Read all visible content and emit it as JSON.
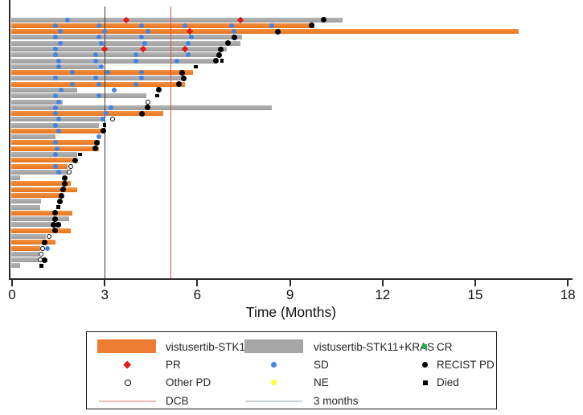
{
  "figure": {
    "background": "#ffffff"
  },
  "chart_data": {
    "type": "swimmer",
    "title": "",
    "xlabel": "Time (Months)",
    "xlim": [
      0,
      18
    ],
    "x_ticks": [
      0,
      3,
      6,
      9,
      12,
      15,
      18
    ],
    "unit": "months",
    "grid": false,
    "groups": {
      "STK11": {
        "label": "vistusertib-STK11",
        "color": "#ED7D31"
      },
      "STK11_KRAS": {
        "label": "vistusertib-STK11+KRAS",
        "color": "#A6A6A6"
      }
    },
    "marker_defs": {
      "CR": {
        "label": "CR",
        "shape": "square",
        "color": "#22B14C",
        "size": 6
      },
      "PR": {
        "label": "PR",
        "shape": "diamond",
        "color": "#E31A1C",
        "size": 6
      },
      "SD": {
        "label": "SD",
        "shape": "circle",
        "color": "#4583E3",
        "size": 6
      },
      "PD": {
        "label": "RECIST PD",
        "shape": "circle",
        "color": "#000000",
        "size": 7
      },
      "OPD": {
        "label": "Other PD",
        "shape": "open-circle",
        "color": "#000000",
        "size": 6
      },
      "NE": {
        "label": "NE",
        "shape": "circle",
        "color": "#FFFF33",
        "size": 6
      },
      "DIED": {
        "label": "Died",
        "shape": "square",
        "color": "#000000",
        "size": 4.5
      }
    },
    "ref_lines": [
      {
        "id": "dcb",
        "label": "DCB",
        "x": 5.13,
        "color": "#E14A4A",
        "legend_color": "#F0B9B6"
      },
      {
        "id": "3mo",
        "label": "3 months",
        "x": 3.0,
        "color": "#3a3a3a",
        "legend_color": "#C7D0D6"
      }
    ],
    "rows": [
      {
        "group": "STK11_KRAS",
        "end": 10.7,
        "markers": [
          {
            "type": "SD",
            "t": 1.8
          },
          {
            "type": "PR",
            "t": 3.7
          },
          {
            "type": "PR",
            "t": 7.4
          },
          {
            "type": "PD",
            "t": 10.1
          }
        ]
      },
      {
        "group": "STK11",
        "end": 9.8,
        "markers": [
          {
            "type": "SD",
            "t": 1.4
          },
          {
            "type": "SD",
            "t": 2.8
          },
          {
            "type": "SD",
            "t": 4.2
          },
          {
            "type": "SD",
            "t": 5.6
          },
          {
            "type": "SD",
            "t": 7.1
          },
          {
            "type": "SD",
            "t": 8.4
          },
          {
            "type": "PD",
            "t": 9.7
          }
        ]
      },
      {
        "group": "STK11",
        "end": 16.4,
        "markers": [
          {
            "type": "SD",
            "t": 1.55
          },
          {
            "type": "SD",
            "t": 3.0
          },
          {
            "type": "SD",
            "t": 4.4
          },
          {
            "type": "PR",
            "t": 5.75
          },
          {
            "type": "SD",
            "t": 7.2
          },
          {
            "type": "PD",
            "t": 8.6
          }
        ]
      },
      {
        "group": "STK11_KRAS",
        "end": 7.45,
        "markers": [
          {
            "type": "SD",
            "t": 1.4
          },
          {
            "type": "SD",
            "t": 2.8
          },
          {
            "type": "SD",
            "t": 4.2
          },
          {
            "type": "SD",
            "t": 5.8
          },
          {
            "type": "PD",
            "t": 7.2
          }
        ]
      },
      {
        "group": "STK11_KRAS",
        "end": 7.4,
        "markers": [
          {
            "type": "SD",
            "t": 1.55
          },
          {
            "type": "SD",
            "t": 2.9
          },
          {
            "type": "SD",
            "t": 4.3
          },
          {
            "type": "SD",
            "t": 5.7
          },
          {
            "type": "PD",
            "t": 7.0
          }
        ]
      },
      {
        "group": "STK11_KRAS",
        "end": 6.95,
        "markers": [
          {
            "type": "SD",
            "t": 1.4
          },
          {
            "type": "PR",
            "t": 3.0
          },
          {
            "type": "PR",
            "t": 4.25
          },
          {
            "type": "PR",
            "t": 5.6
          },
          {
            "type": "PD",
            "t": 6.75
          }
        ]
      },
      {
        "group": "STK11_KRAS",
        "end": 6.7,
        "markers": [
          {
            "type": "SD",
            "t": 1.4
          },
          {
            "type": "SD",
            "t": 2.7
          },
          {
            "type": "SD",
            "t": 4.0
          },
          {
            "type": "SD",
            "t": 5.7
          },
          {
            "type": "PD",
            "t": 6.7
          }
        ]
      },
      {
        "group": "STK11_KRAS",
        "end": 6.6,
        "markers": [
          {
            "type": "SD",
            "t": 1.5
          },
          {
            "type": "SD",
            "t": 2.7
          },
          {
            "type": "SD",
            "t": 4.0
          },
          {
            "type": "SD",
            "t": 5.35
          },
          {
            "type": "PD",
            "t": 6.6
          },
          {
            "type": "DIED",
            "t": 6.8
          }
        ]
      },
      {
        "group": "STK11_KRAS",
        "end": 2.85,
        "markers": [
          {
            "type": "SD",
            "t": 1.5
          },
          {
            "type": "SD",
            "t": 2.9
          },
          {
            "type": "DIED",
            "t": 5.95
          }
        ]
      },
      {
        "group": "STK11",
        "end": 5.85,
        "markers": [
          {
            "type": "SD",
            "t": 1.95
          },
          {
            "type": "SD",
            "t": 3.1
          },
          {
            "type": "SD",
            "t": 4.2
          },
          {
            "type": "PD",
            "t": 5.5
          }
        ]
      },
      {
        "group": "STK11_KRAS",
        "end": 5.6,
        "markers": [
          {
            "type": "SD",
            "t": 1.4
          },
          {
            "type": "SD",
            "t": 2.7
          },
          {
            "type": "SD",
            "t": 4.2
          },
          {
            "type": "PD",
            "t": 5.55
          }
        ]
      },
      {
        "group": "STK11",
        "end": 5.6,
        "markers": [
          {
            "type": "SD",
            "t": 1.95
          },
          {
            "type": "SD",
            "t": 2.8
          },
          {
            "type": "SD",
            "t": 4.0
          },
          {
            "type": "PD",
            "t": 5.4
          }
        ]
      },
      {
        "group": "STK11_KRAS",
        "end": 2.1,
        "markers": [
          {
            "type": "SD",
            "t": 1.6
          },
          {
            "type": "SD",
            "t": 3.3
          },
          {
            "type": "PD",
            "t": 4.75
          }
        ]
      },
      {
        "group": "STK11_KRAS",
        "end": 4.35,
        "markers": [
          {
            "type": "SD",
            "t": 1.4
          },
          {
            "type": "SD",
            "t": 2.8
          },
          {
            "type": "DIED",
            "t": 4.7
          }
        ]
      },
      {
        "group": "STK11_KRAS",
        "end": 1.65,
        "markers": [
          {
            "type": "SD",
            "t": 1.5
          },
          {
            "type": "OPD",
            "t": 4.4
          }
        ]
      },
      {
        "group": "STK11_KRAS",
        "end": 8.4,
        "markers": [
          {
            "type": "SD",
            "t": 1.4
          },
          {
            "type": "SD",
            "t": 3.2
          },
          {
            "type": "PD",
            "t": 4.4
          }
        ]
      },
      {
        "group": "STK11",
        "end": 4.9,
        "markers": [
          {
            "type": "SD",
            "t": 1.4
          },
          {
            "type": "SD",
            "t": 3.05
          },
          {
            "type": "PD",
            "t": 4.2
          }
        ]
      },
      {
        "group": "STK11_KRAS",
        "end": 3.0,
        "markers": [
          {
            "type": "SD",
            "t": 1.5
          },
          {
            "type": "SD",
            "t": 2.95
          },
          {
            "type": "OPD",
            "t": 3.25
          }
        ]
      },
      {
        "group": "STK11_KRAS",
        "end": 2.8,
        "markers": [
          {
            "type": "SD",
            "t": 1.4
          },
          {
            "type": "DIED",
            "t": 3.0
          }
        ]
      },
      {
        "group": "STK11",
        "end": 3.0,
        "markers": [
          {
            "type": "SD",
            "t": 1.5
          },
          {
            "type": "PD",
            "t": 2.95
          }
        ]
      },
      {
        "group": "STK11_KRAS",
        "end": 1.4,
        "markers": [
          {
            "type": "SD",
            "t": 2.8
          }
        ]
      },
      {
        "group": "STK11",
        "end": 2.85,
        "markers": [
          {
            "type": "SD",
            "t": 1.4
          },
          {
            "type": "PD",
            "t": 2.75
          }
        ]
      },
      {
        "group": "STK11",
        "end": 2.8,
        "markers": [
          {
            "type": "SD",
            "t": 1.45
          },
          {
            "type": "PD",
            "t": 2.7
          }
        ]
      },
      {
        "group": "STK11_KRAS",
        "end": 2.1,
        "markers": [
          {
            "type": "SD",
            "t": 1.4
          },
          {
            "type": "DIED",
            "t": 2.2
          }
        ]
      },
      {
        "group": "STK11",
        "end": 2.0,
        "markers": [
          {
            "type": "PD",
            "t": 2.05
          }
        ]
      },
      {
        "group": "STK11",
        "end": 1.8,
        "markers": [
          {
            "type": "SD",
            "t": 1.4
          },
          {
            "type": "OPD",
            "t": 1.9
          }
        ]
      },
      {
        "group": "STK11_KRAS",
        "end": 1.8,
        "markers": [
          {
            "type": "SD",
            "t": 1.5
          },
          {
            "type": "OPD",
            "t": 1.85
          }
        ]
      },
      {
        "group": "STK11_KRAS",
        "end": 0.25,
        "markers": [
          {
            "type": "PD",
            "t": 1.7
          }
        ]
      },
      {
        "group": "STK11",
        "end": 1.9,
        "markers": [
          {
            "type": "PD",
            "t": 1.7
          }
        ]
      },
      {
        "group": "STK11",
        "end": 2.1,
        "markers": [
          {
            "type": "PD",
            "t": 1.65
          }
        ]
      },
      {
        "group": "STK11",
        "end": 1.65,
        "markers": [
          {
            "type": "PD",
            "t": 1.6
          }
        ]
      },
      {
        "group": "STK11_KRAS",
        "end": 0.95,
        "markers": [
          {
            "type": "PD",
            "t": 1.55
          }
        ]
      },
      {
        "group": "STK11_KRAS",
        "end": 0.9,
        "markers": [
          {
            "type": "DIED",
            "t": 1.5
          }
        ]
      },
      {
        "group": "STK11",
        "end": 1.95,
        "markers": [
          {
            "type": "PD",
            "t": 1.4
          }
        ]
      },
      {
        "group": "STK11_KRAS",
        "end": 1.85,
        "markers": [
          {
            "type": "PD",
            "t": 1.4
          }
        ]
      },
      {
        "group": "STK11_KRAS",
        "end": 1.6,
        "markers": [
          {
            "type": "PD",
            "t": 1.35
          },
          {
            "type": "PD",
            "t": 1.5
          }
        ]
      },
      {
        "group": "STK11",
        "end": 1.9,
        "markers": [
          {
            "type": "PD",
            "t": 1.4
          }
        ]
      },
      {
        "group": "STK11_KRAS",
        "end": 1.1,
        "markers": [
          {
            "type": "OPD",
            "t": 1.2
          }
        ]
      },
      {
        "group": "STK11",
        "end": 1.4,
        "markers": [
          {
            "type": "PD",
            "t": 1.05
          }
        ]
      },
      {
        "group": "STK11",
        "end": 0.9,
        "markers": [
          {
            "type": "OPD",
            "t": 1.0
          },
          {
            "type": "SD",
            "t": 1.15
          }
        ]
      },
      {
        "group": "STK11_KRAS",
        "end": 0.85,
        "markers": [
          {
            "type": "OPD",
            "t": 0.95
          }
        ]
      },
      {
        "group": "STK11_KRAS",
        "end": 0.85,
        "markers": [
          {
            "type": "OPD",
            "t": 0.9
          },
          {
            "type": "PD",
            "t": 1.05
          }
        ]
      },
      {
        "group": "STK11_KRAS",
        "end": 0.25,
        "markers": [
          {
            "type": "DIED",
            "t": 0.95
          }
        ]
      }
    ]
  },
  "axis": {
    "tick_labels": [
      "0",
      "3",
      "6",
      "9",
      "12",
      "15",
      "18"
    ]
  }
}
